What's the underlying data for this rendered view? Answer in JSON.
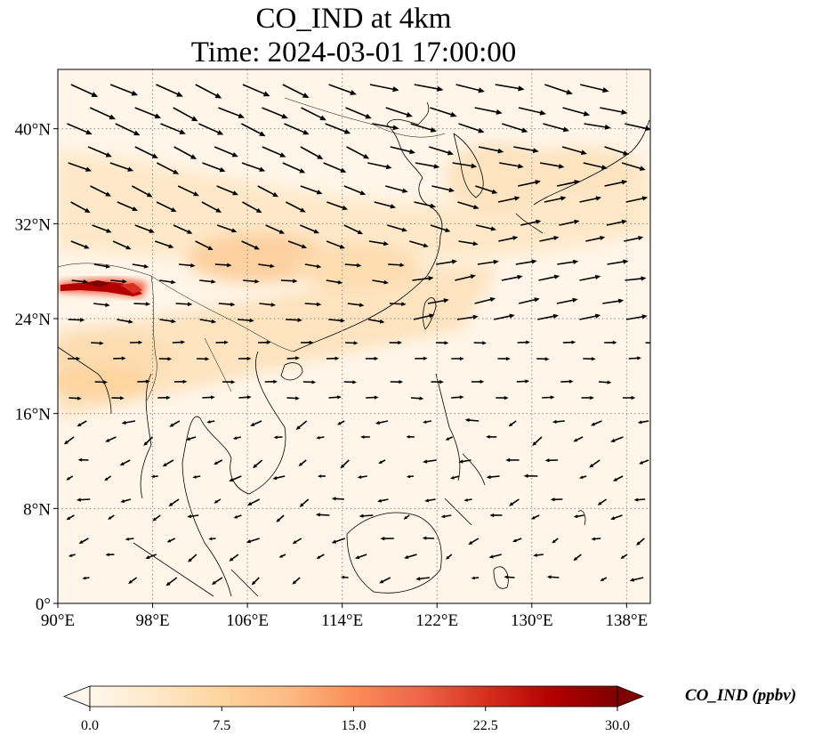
{
  "title": {
    "line1": "CO_IND at 4km",
    "line2": "Time: 2024-03-01 17:00:00"
  },
  "map": {
    "lon_range": [
      90,
      140
    ],
    "lat_range": [
      0,
      45
    ],
    "gridlines": true,
    "x_ticks": [
      "90°E",
      "98°E",
      "106°E",
      "114°E",
      "122°E",
      "130°E",
      "138°E"
    ],
    "y_ticks": [
      "0°",
      "8°N",
      "16°N",
      "24°N",
      "32°N",
      "40°N"
    ],
    "field": "CO_IND",
    "colormap": "OrRd",
    "high_value_region": "Himalayan foothills near 27°N, 90–98°E",
    "vectors": "wind arrows"
  },
  "colorbar": {
    "label": "CO_IND (ppbv)",
    "ticks": [
      "0.0",
      "7.5",
      "15.0",
      "22.5",
      "30.0"
    ],
    "min": 0.0,
    "max": 30.0,
    "extend": "both",
    "colors": [
      "#fff7ec",
      "#fdd49e",
      "#fc8d59",
      "#d7301f",
      "#7f0000"
    ]
  }
}
